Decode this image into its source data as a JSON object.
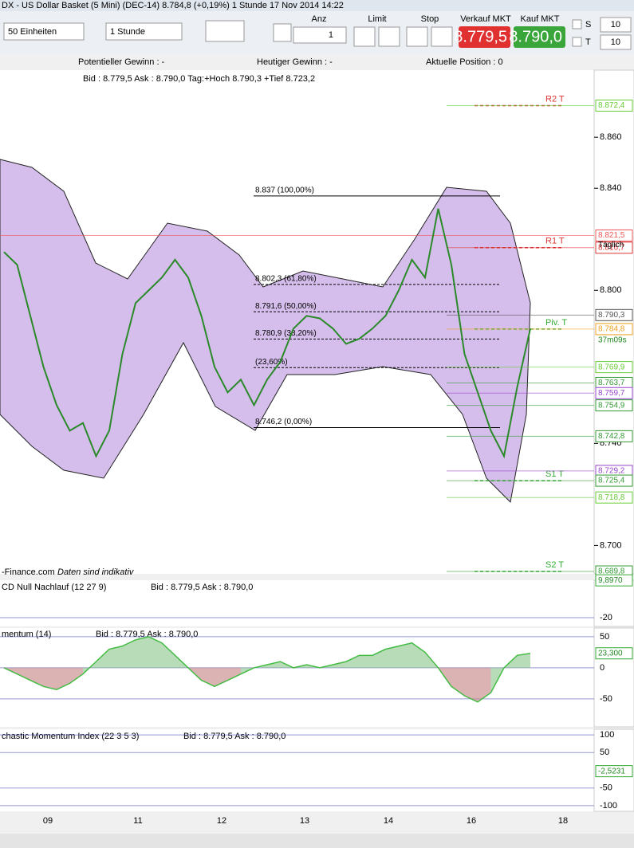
{
  "window_title": "DX - US Dollar Basket (5 Mini) (DEC-14)   8.784,8 (+0,19%)   1 Stunde   17 Nov 2014 14:22",
  "toolbar": {
    "units": "50 Einheiten",
    "period": "1 Stunde",
    "qty_label": "Anz",
    "qty": "1",
    "limit": "Limit",
    "stop": "Stop",
    "sell_label": "Verkauf MKT",
    "sell_price": "8.779,5",
    "buy_label": "Kauf MKT",
    "buy_price": "8.790,0",
    "s_label": "S",
    "s_value": "10",
    "t_label": "T",
    "t_value": "10"
  },
  "info": {
    "potential": "Potentieller Gewinn : -",
    "today": "Heutiger Gewinn : -",
    "position": "Aktuelle Position : 0"
  },
  "main": {
    "header": "Bid : 8.779,5 Ask : 8.790,0 Tag:+Hoch 8.790,3 +Tief 8.723,2",
    "footer": "-Finance.com",
    "footer_note": "Daten sind indikativ",
    "ylim": [
      8.6895,
      8.8863
    ],
    "yticks": [
      {
        "value": 8.86,
        "label": "8.860"
      },
      {
        "value": 8.84,
        "label": "8.840"
      },
      {
        "value": 8.8,
        "label": "8.800"
      },
      {
        "value": 8.74,
        "label": "8.740"
      },
      {
        "value": 8.7,
        "label": "8.700"
      }
    ],
    "levels": [
      {
        "value": 8.8724,
        "label": "8.872,4",
        "color": "#66cc33"
      },
      {
        "value": 8.8215,
        "label": "8.821,5",
        "color": "#ee5555"
      },
      {
        "value": 8.8167,
        "label": "8.816,7",
        "color": "#dd3333"
      },
      {
        "value": 8.7903,
        "label": "8.790,3",
        "color": "#555555"
      },
      {
        "value": 8.7848,
        "label": "8.784,8",
        "color": "#f0a020"
      },
      {
        "value": 8.7699,
        "label": "8.769,9",
        "color": "#66cc33"
      },
      {
        "value": 8.7637,
        "label": "8.763,7",
        "color": "#339933"
      },
      {
        "value": 8.7597,
        "label": "8.759,7",
        "color": "#9944cc"
      },
      {
        "value": 8.7549,
        "label": "8.754,9",
        "color": "#339933"
      },
      {
        "value": 8.7428,
        "label": "8.742,8",
        "color": "#339933"
      },
      {
        "value": 8.7292,
        "label": "8.729,2",
        "color": "#9944cc"
      },
      {
        "value": 8.7254,
        "label": "8.725,4",
        "color": "#339933"
      },
      {
        "value": 8.7188,
        "label": "8.718,8",
        "color": "#66cc33"
      },
      {
        "value": 8.6898,
        "label": "8.689,8",
        "color": "#339933"
      }
    ],
    "daily_label": "Täglich",
    "timer": "37m09s",
    "pivots": [
      {
        "label": "R2 T",
        "value": 8.8724
      },
      {
        "label": "R1 T",
        "value": 8.8167
      },
      {
        "label": "Piv. T",
        "value": 8.7848
      },
      {
        "label": "S1 T",
        "value": 8.7254
      },
      {
        "label": "S2 T",
        "value": 8.6898
      }
    ],
    "fib": [
      {
        "label": "8.837 (100,00%)",
        "value": 8.837
      },
      {
        "label": "8.802,3 (61,80%)",
        "value": 8.8023
      },
      {
        "label": "8.791,6 (50,00%)",
        "value": 8.7916
      },
      {
        "label": "8.780,9 (38,20%)",
        "value": 8.7809
      },
      {
        "label": "(23,60%)",
        "value": 8.7697
      },
      {
        "label": "8.746,2 (0,00%)",
        "value": 8.7462
      }
    ],
    "close": [
      8.815,
      8.81,
      8.79,
      8.77,
      8.755,
      8.745,
      8.748,
      8.735,
      8.745,
      8.775,
      8.795,
      8.8,
      8.805,
      8.812,
      8.805,
      8.79,
      8.77,
      8.76,
      8.765,
      8.755,
      8.765,
      8.772,
      8.785,
      8.79,
      8.789,
      8.785,
      8.779,
      8.781,
      8.785,
      8.79,
      8.8,
      8.812,
      8.805,
      8.832,
      8.81,
      8.775,
      8.76,
      8.745,
      8.735,
      8.762,
      8.785
    ]
  },
  "macd": {
    "header": "CD Null Nachlauf (12 27 9)",
    "bid": "Bid : 8.779,5 Ask : 8.790,0",
    "ylim": [
      -27,
      10
    ],
    "yticks": [
      -20
    ],
    "last": {
      "value": 9.897,
      "label": "9,8970"
    }
  },
  "momentum": {
    "header": "mentum (14)",
    "bid": "Bid : 8.779,5 Ask : 8.790,0",
    "ylim": [
      -95,
      64
    ],
    "yticks": [
      50,
      0,
      -50
    ],
    "last": {
      "value": 23.3,
      "label": "23,300"
    },
    "values": [
      0,
      -10,
      -20,
      -30,
      -35,
      -25,
      -10,
      10,
      30,
      35,
      45,
      50,
      40,
      20,
      0,
      -20,
      -30,
      -20,
      -10,
      0,
      5,
      10,
      0,
      5,
      0,
      5,
      10,
      20,
      20,
      30,
      35,
      40,
      25,
      0,
      -30,
      -45,
      -55,
      -40,
      0,
      20,
      23.3
    ]
  },
  "smi": {
    "header": "chastic Momentum Index (22 3 5 3)",
    "bid": "Bid : 8.779,5 Ask : 8.790,0",
    "ylim": [
      -116,
      116
    ],
    "yticks": [
      100,
      50,
      -50,
      -100
    ],
    "last": {
      "value": -2.5231,
      "label": "-2,5231"
    }
  },
  "xaxis": [
    "09",
    "11",
    "12",
    "13",
    "14",
    "16",
    "18"
  ]
}
